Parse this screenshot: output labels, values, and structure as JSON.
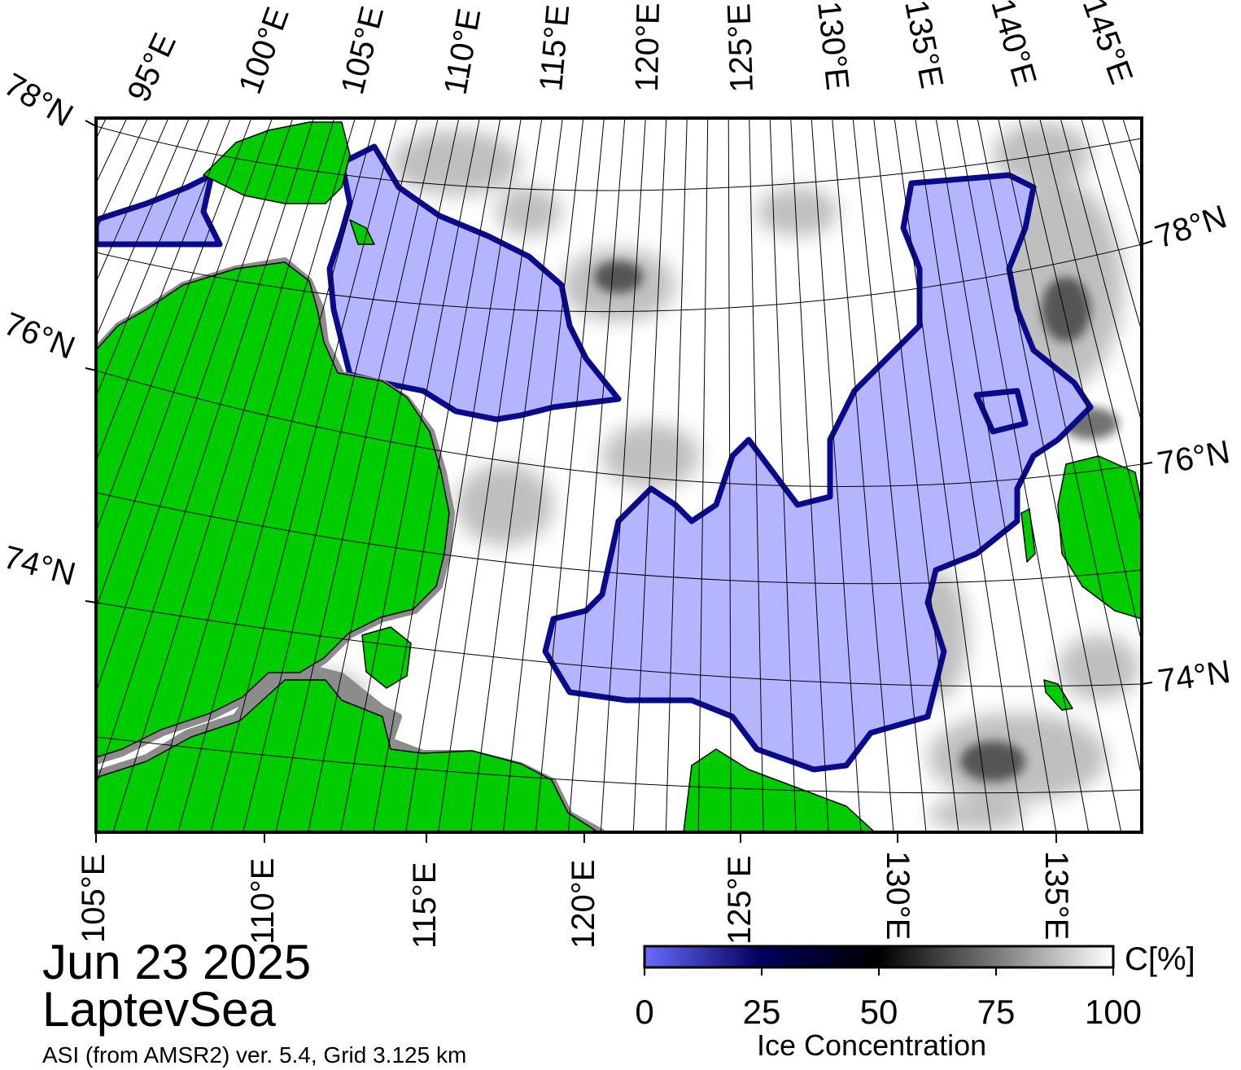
{
  "header": {
    "date": "Jun 23 2025",
    "region": "LaptevSea",
    "source": "ASI (from AMSR2) ver. 5.4,  Grid 3.125 km"
  },
  "map": {
    "top_lon_labels": [
      "95°E",
      "100°E",
      "105°E",
      "110°E",
      "115°E",
      "120°E",
      "125°E",
      "130°E",
      "135°E",
      "140°E",
      "145°E"
    ],
    "bottom_lon_labels": [
      "105°E",
      "110°E",
      "115°E",
      "120°E",
      "125°E",
      "130°E",
      "135°E"
    ],
    "left_lat_labels": [
      "78°N",
      "76°N",
      "74°N"
    ],
    "right_lat_labels": [
      "78°N",
      "76°N",
      "74°N"
    ],
    "colors": {
      "land": "#00cc00",
      "coast_shelf": "#8c8c8c",
      "open_water": "#b4b4ff",
      "ice_edge": "#0a0a8c",
      "frame": "#000000"
    }
  },
  "colorbar": {
    "title": "Ice Concentration",
    "unit": "C[%]",
    "ticks": [
      "0",
      "25",
      "50",
      "75",
      "100"
    ],
    "stops": [
      "#6a6aff",
      "#00005a",
      "#000000",
      "#7a7a7a",
      "#ffffff"
    ]
  }
}
